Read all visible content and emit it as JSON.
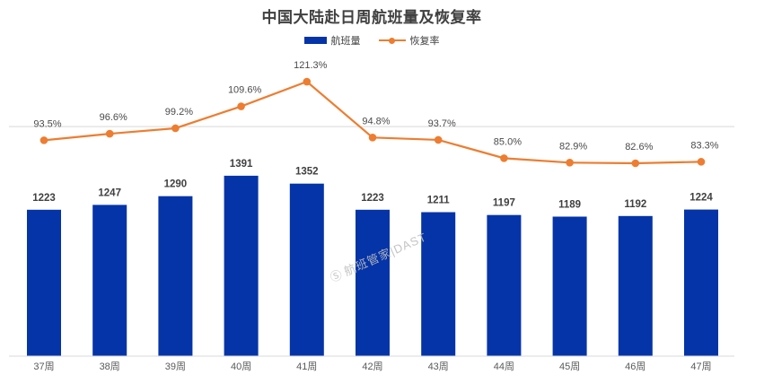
{
  "title": "中国大陆赴日周航班量及恢复率",
  "legend": {
    "bar_label": "航班量",
    "line_label": "恢复率"
  },
  "watermark": {
    "icon": "Ⓢ",
    "text": "航班管家|DAST"
  },
  "colors": {
    "bar": "#0534A8",
    "line": "#ED7D31",
    "gridline": "#D9D9D9",
    "value_label": "#404040",
    "axis_label": "#595959"
  },
  "chart_data": {
    "type": "combo-bar-line",
    "title": "中国大陆赴日周航班量及恢复率",
    "categories": [
      "37周",
      "38周",
      "39周",
      "40周",
      "41周",
      "42周",
      "43周",
      "44周",
      "45周",
      "46周",
      "47周"
    ],
    "series": [
      {
        "name": "航班量",
        "type": "bar",
        "color": "#0534A8",
        "values": [
          1223,
          1247,
          1290,
          1391,
          1352,
          1223,
          1211,
          1197,
          1189,
          1192,
          1224
        ],
        "labels": [
          "1223",
          "1247",
          "1290",
          "1391",
          "1352",
          "1223",
          "1211",
          "1197",
          "1189",
          "1192",
          "1224"
        ]
      },
      {
        "name": "恢复率",
        "type": "line",
        "color": "#ED7D31",
        "unit": "%",
        "values": [
          93.5,
          96.6,
          99.2,
          109.6,
          121.3,
          94.8,
          93.7,
          85.0,
          82.9,
          82.6,
          83.3
        ],
        "labels": [
          "93.5%",
          "96.6%",
          "99.2%",
          "109.6%",
          "121.3%",
          "94.8%",
          "93.7%",
          "85.0%",
          "82.9%",
          "82.6%",
          "83.3%"
        ]
      }
    ],
    "legend_position": "top",
    "grid_on": true,
    "gridline_at_rate_pct": 100,
    "bar_axis_visible": false,
    "line_axis_visible": false,
    "xlabel": "",
    "ylabel": ""
  }
}
